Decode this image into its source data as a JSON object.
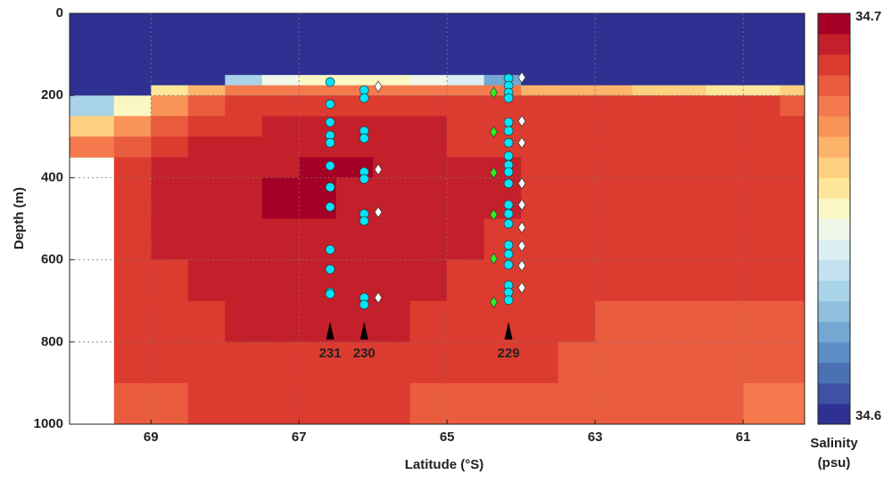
{
  "chart_data": {
    "type": "heatmap",
    "xlabel": "Latitude (°S)",
    "ylabel": "Depth (m)",
    "xlim": [
      70.1,
      60.17
    ],
    "ylim": [
      0,
      1000
    ],
    "xticks": [
      69,
      67,
      65,
      63,
      61
    ],
    "yticks": [
      0,
      200,
      400,
      600,
      800,
      1000
    ],
    "grid": true,
    "x_edges": [
      70.1,
      69.5,
      69,
      68.5,
      68,
      67.5,
      67,
      66.5,
      66,
      65.5,
      65,
      64.5,
      64,
      63.5,
      63,
      62.5,
      62,
      61.5,
      61,
      60.5,
      60.17
    ],
    "y_edges": [
      0,
      150,
      175,
      200,
      250,
      300,
      350,
      400,
      500,
      600,
      700,
      800,
      900,
      1000
    ],
    "z": [
      [
        34.6,
        34.6,
        34.6,
        34.6,
        34.6,
        34.6,
        34.6,
        34.6,
        34.6,
        34.6,
        34.6,
        34.6,
        34.6,
        34.6,
        34.6,
        34.6,
        34.6,
        34.6,
        34.6,
        34.6
      ],
      [
        34.6,
        34.6,
        34.6,
        34.6,
        34.63,
        34.645,
        34.65,
        34.65,
        34.65,
        34.645,
        34.64,
        34.62,
        34.6,
        34.6,
        34.6,
        34.6,
        34.6,
        34.6,
        34.6,
        34.6
      ],
      [
        34.6,
        34.6,
        34.655,
        34.665,
        34.675,
        34.675,
        34.675,
        34.675,
        34.675,
        34.675,
        34.675,
        34.675,
        34.665,
        34.665,
        34.665,
        34.66,
        34.66,
        34.655,
        34.655,
        34.66
      ],
      [
        34.63,
        34.65,
        34.67,
        34.68,
        34.685,
        34.685,
        34.685,
        34.685,
        34.685,
        34.685,
        34.685,
        34.685,
        34.685,
        34.685,
        34.685,
        34.685,
        34.685,
        34.685,
        34.685,
        34.68
      ],
      [
        34.66,
        34.67,
        34.68,
        34.685,
        34.685,
        34.69,
        34.69,
        34.69,
        34.69,
        34.69,
        34.685,
        34.685,
        34.685,
        34.685,
        34.685,
        34.685,
        34.685,
        34.685,
        34.685,
        34.685
      ],
      [
        34.675,
        34.68,
        34.685,
        34.69,
        34.69,
        34.69,
        34.69,
        34.69,
        34.69,
        34.69,
        34.685,
        34.685,
        34.685,
        34.685,
        34.685,
        34.685,
        34.685,
        34.685,
        34.685,
        34.685
      ],
      [
        null,
        34.685,
        34.69,
        34.69,
        34.69,
        34.69,
        34.695,
        34.695,
        34.69,
        34.69,
        34.69,
        34.69,
        34.685,
        34.685,
        34.685,
        34.685,
        34.685,
        34.685,
        34.685,
        34.685
      ],
      [
        null,
        34.685,
        34.69,
        34.69,
        34.69,
        34.695,
        34.695,
        34.69,
        34.69,
        34.69,
        34.69,
        34.69,
        34.685,
        34.685,
        34.685,
        34.685,
        34.685,
        34.685,
        34.685,
        34.685
      ],
      [
        null,
        34.685,
        34.69,
        34.69,
        34.69,
        34.69,
        34.69,
        34.69,
        34.69,
        34.69,
        34.69,
        34.685,
        34.685,
        34.685,
        34.685,
        34.685,
        34.685,
        34.685,
        34.685,
        34.685
      ],
      [
        null,
        34.685,
        34.685,
        34.69,
        34.69,
        34.69,
        34.69,
        34.69,
        34.69,
        34.69,
        34.685,
        34.685,
        34.685,
        34.685,
        34.685,
        34.685,
        34.685,
        34.685,
        34.685,
        34.685
      ],
      [
        null,
        34.685,
        34.685,
        34.685,
        34.69,
        34.69,
        34.69,
        34.69,
        34.69,
        34.685,
        34.685,
        34.685,
        34.685,
        34.685,
        34.68,
        34.68,
        34.68,
        34.68,
        34.68,
        34.68
      ],
      [
        null,
        34.685,
        34.685,
        34.685,
        34.685,
        34.685,
        34.685,
        34.685,
        34.685,
        34.685,
        34.685,
        34.685,
        34.685,
        34.68,
        34.68,
        34.68,
        34.68,
        34.68,
        34.68,
        34.68
      ],
      [
        null,
        34.68,
        34.68,
        34.685,
        34.685,
        34.685,
        34.685,
        34.685,
        34.685,
        34.68,
        34.68,
        34.68,
        34.68,
        34.68,
        34.68,
        34.68,
        34.68,
        34.68,
        34.675,
        34.675
      ]
    ],
    "clim": [
      34.6,
      34.7
    ],
    "colorbar_ticks": [
      34.6,
      34.7
    ],
    "colorbar_label": [
      "Salinity",
      "(psu)"
    ],
    "colormap": [
      "#2e3192",
      "#3d52a3",
      "#4a71b3",
      "#5b8ec4",
      "#73a8d3",
      "#8fc0de",
      "#a9d3e8",
      "#c3e2ef",
      "#dbeef4",
      "#eef7e8",
      "#fbf7c4",
      "#fee79a",
      "#fdd080",
      "#fcb36a",
      "#f99457",
      "#f47a4d",
      "#ea5c3e",
      "#dc3c2f",
      "#c4202b",
      "#a50026"
    ],
    "series": [
      {
        "color": "#00e5ff",
        "marker": "circle",
        "x": [
          66.58,
          66.58,
          66.58,
          66.58,
          66.58,
          66.58,
          66.58,
          66.58,
          66.58,
          66.58,
          66.58,
          66.58,
          66.12,
          66.12,
          66.12,
          66.12,
          66.12,
          66.12,
          66.12,
          66.12,
          66.12,
          66.12,
          64.17,
          64.17,
          64.17,
          64.17,
          64.17,
          64.17,
          64.17,
          64.17,
          64.17,
          64.17,
          64.17,
          64.17,
          64.17,
          64.17,
          64.17,
          64.17,
          64.17,
          64.17,
          64.17,
          64.17
        ],
        "y": [
          167,
          221,
          265,
          297,
          315,
          371,
          423,
          471,
          575,
          623,
          679,
          683,
          187,
          206,
          286,
          304,
          386,
          403,
          488,
          505,
          692,
          709,
          158,
          176,
          193,
          206,
          265,
          286,
          315,
          347,
          369,
          386,
          414,
          466,
          488,
          512,
          564,
          586,
          612,
          662,
          679,
          698
        ]
      },
      {
        "color": "#ffffff",
        "marker": "diamond",
        "x": [
          65.93,
          65.93,
          65.93,
          65.93,
          63.99,
          63.99,
          63.99,
          63.99,
          63.99,
          63.99,
          63.99,
          63.99,
          63.99
        ],
        "y": [
          178,
          380,
          484,
          692,
          156,
          262,
          315,
          414,
          466,
          521,
          566,
          614,
          668
        ]
      },
      {
        "color": "#33ee22",
        "marker": "diamond",
        "x": [
          64.37,
          64.37,
          64.37,
          64.37,
          64.37,
          64.37
        ],
        "y": [
          193,
          289,
          388,
          490,
          597,
          703
        ]
      }
    ],
    "annotations": [
      {
        "text": "231",
        "x": 66.58
      },
      {
        "text": "230",
        "x": 66.12
      },
      {
        "text": "229",
        "x": 64.17
      }
    ]
  }
}
